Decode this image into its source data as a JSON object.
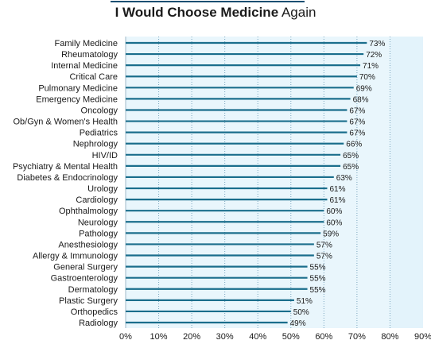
{
  "title": {
    "bold": "I Would Choose Medicine",
    "rest": "Again"
  },
  "colors": {
    "bar": "#1a6e8c",
    "background_band": "#e9f6fc",
    "highlight_band": "#e3f3fb",
    "grid": "#7aa6bf",
    "title_rule": "#1b4f72"
  },
  "chart_data": {
    "type": "bar",
    "orientation": "horizontal",
    "title": "I Would Choose Medicine Again",
    "categories": [
      "Family Medicine",
      "Rheumatology",
      "Internal Medicine",
      "Critical Care",
      "Pulmonary Medicine",
      "Emergency Medicine",
      "Oncology",
      "Ob/Gyn & Women's Health",
      "Pediatrics",
      "Nephrology",
      "HIV/ID",
      "Psychiatry & Mental Health",
      "Diabetes & Endocrinology",
      "Urology",
      "Cardiology",
      "Ophthalmology",
      "Neurology",
      "Pathology",
      "Anesthesiology",
      "Allergy & Immunology",
      "General Surgery",
      "Gastroenterology",
      "Dermatology",
      "Plastic Surgery",
      "Orthopedics",
      "Radiology"
    ],
    "values": [
      73,
      72,
      71,
      70,
      69,
      68,
      67,
      67,
      67,
      66,
      65,
      65,
      63,
      61,
      61,
      60,
      60,
      59,
      57,
      57,
      55,
      55,
      55,
      51,
      50,
      49
    ],
    "value_labels": [
      "73%",
      "72%",
      "71%",
      "70%",
      "69%",
      "68%",
      "67%",
      "67%",
      "67%",
      "66%",
      "65%",
      "65%",
      "63%",
      "61%",
      "61%",
      "60%",
      "60%",
      "59%",
      "57%",
      "57%",
      "55%",
      "55%",
      "55%",
      "51%",
      "50%",
      "49%"
    ],
    "xlim": [
      0,
      90
    ],
    "x_ticks": [
      "0%",
      "10%",
      "20%",
      "30%",
      "40%",
      "50%",
      "60%",
      "70%",
      "80%",
      "90%"
    ],
    "grid": true,
    "xlabel": "",
    "ylabel": ""
  }
}
